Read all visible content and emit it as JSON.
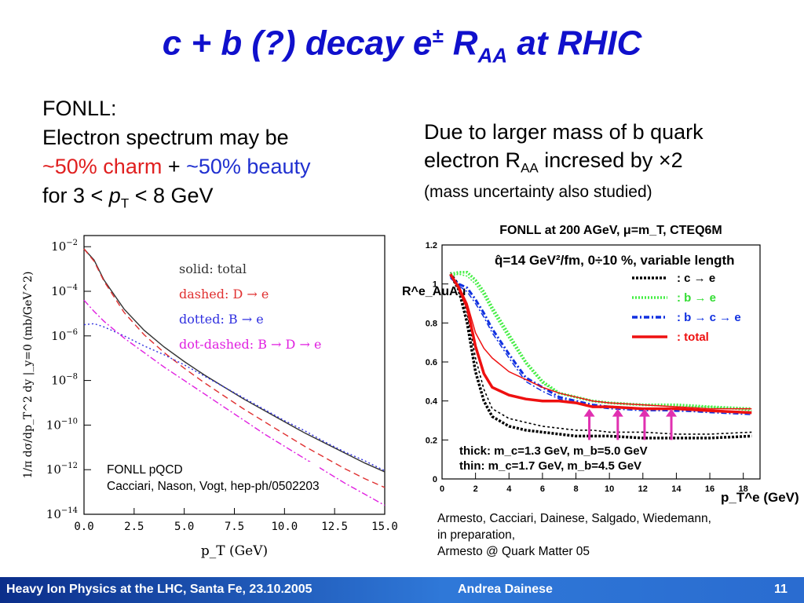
{
  "slide": {
    "title_main": "c + b (?) decay e",
    "title_sup": "±",
    "title_R": " R",
    "title_sub": "AA",
    "title_end": " at RHIC",
    "left_line1": "FONLL:",
    "left_line2": "Electron spectrum may be",
    "left_charm": "~50% charm",
    "left_plus": " + ",
    "left_beauty": "~50% beauty",
    "left_line4a": "for 3 < ",
    "left_line4p": "p",
    "left_line4sub": "T",
    "left_line4b": " < 8 GeV",
    "right_line1": "Due to larger mass of b quark",
    "right_line2a": "electron R",
    "right_line2sub": "AA",
    "right_line2b": " incresed by ×2",
    "right_line3": "(mass uncertainty also studied)",
    "credit_left_1": "FONLL pQCD",
    "credit_left_2": "Cacciari, Nason, Vogt, hep-ph/0502203",
    "credit_right_1": "Armesto, Cacciari, Dainese, Salgado, Wiedemann,",
    "credit_right_2": "in preparation,",
    "credit_right_3": "Armesto @ Quark Matter 05",
    "footer_left": "Heavy Ion Physics at the LHC, Santa Fe, 23.10.2005",
    "footer_center": "Andrea Dainese",
    "footer_page": "11"
  },
  "chart_data": [
    {
      "type": "line",
      "xlabel": "p_T (GeV)",
      "ylabel": "1/π dσ/dp_T^2 dy |_y=0 (mb/GeV^2)",
      "xlim": [
        0,
        15
      ],
      "ylim_log10": [
        -14,
        -1.5
      ],
      "log_y": true,
      "x_ticks": [
        "0.0",
        "2.5",
        "5.0",
        "7.5",
        "10.0",
        "12.5",
        "15.0"
      ],
      "y_ticks": [
        "10^-2",
        "10^-4",
        "10^-6",
        "10^-8",
        "10^-10",
        "10^-12",
        "10^-14"
      ],
      "legend": [
        "solid: total",
        "dashed: D → e",
        "dotted: B → e",
        "dot-dashed: B → D → e"
      ],
      "legend_colors": [
        "#333333",
        "#e03030",
        "#3030e0",
        "#e020e0"
      ],
      "x": [
        0,
        0.5,
        1,
        2,
        3,
        4,
        5,
        6,
        7,
        8,
        9,
        10,
        11,
        12,
        13,
        14,
        15
      ],
      "series": [
        {
          "name": "solid: total",
          "log10_values": [
            -2.1,
            -2.6,
            -3.5,
            -4.8,
            -5.75,
            -6.5,
            -7.15,
            -7.75,
            -8.3,
            -8.85,
            -9.35,
            -9.85,
            -10.35,
            -10.8,
            -11.25,
            -11.7,
            -12.1
          ]
        },
        {
          "name": "dashed: D → e",
          "log10_values": [
            -2.1,
            -2.65,
            -3.55,
            -4.95,
            -5.95,
            -6.75,
            -7.45,
            -8.1,
            -8.7,
            -9.3,
            -9.85,
            -10.4,
            -10.95,
            -11.45,
            -11.95,
            -12.4,
            -12.8
          ]
        },
        {
          "name": "dotted: B → e",
          "log10_values": [
            -5.5,
            -5.45,
            -5.6,
            -6.0,
            -6.45,
            -6.85,
            -7.3,
            -7.8,
            -8.3,
            -8.8,
            -9.3,
            -9.8,
            -10.25,
            -10.75,
            -11.2,
            -11.6,
            -12.05
          ]
        },
        {
          "name": "dot-dashed: B → D → e",
          "log10_values": [
            -4.4,
            -4.9,
            -5.35,
            -6.1,
            -6.75,
            -7.4,
            -8.0,
            -8.6,
            -9.2,
            -9.8,
            -10.4,
            -10.95,
            -11.5,
            -12.05,
            -12.6,
            -13.1,
            -13.6
          ]
        }
      ]
    },
    {
      "type": "line",
      "title": "FONLL at 200 AGeV, μ=m_T, CTEQ6M",
      "annotation": "q̂=14 GeV²/fm, 0÷10 %, variable length",
      "xlabel": "p_T^e (GeV)",
      "ylabel": "R^e_AuAu",
      "xlim": [
        0,
        19
      ],
      "ylim": [
        0,
        1.2
      ],
      "x_ticks": [
        "0",
        "2",
        "4",
        "6",
        "8",
        "10",
        "12",
        "14",
        "16",
        "18"
      ],
      "y_ticks": [
        "0",
        "0.2",
        "0.4",
        "0.6",
        "0.8",
        "1",
        "1.2"
      ],
      "legend": [
        ": c → e",
        ": b → e",
        ": b → c → e",
        ": total"
      ],
      "legend_colors": [
        "#000000",
        "#33dd33",
        "#1030e0",
        "#ee1010"
      ],
      "note_thick": "thick: m_c=1.3 GeV, m_b=5.0 GeV",
      "note_thin": "thin: m_c=1.7 GeV, m_b=4.5 GeV",
      "arrows_x": [
        8.8,
        10.5,
        12.1,
        13.7
      ],
      "arrows_y": [
        0.2,
        0.36
      ],
      "x": [
        0.5,
        1,
        1.5,
        2,
        2.5,
        3,
        4,
        5,
        6,
        7,
        8,
        9,
        10,
        12,
        14,
        16,
        18.5
      ],
      "series": [
        {
          "name": "c → e (thick)",
          "values": [
            1.05,
            0.97,
            0.8,
            0.55,
            0.4,
            0.32,
            0.27,
            0.25,
            0.24,
            0.23,
            0.22,
            0.22,
            0.22,
            0.21,
            0.21,
            0.21,
            0.22
          ]
        },
        {
          "name": "c → e (thin)",
          "values": [
            1.06,
            1.0,
            0.85,
            0.62,
            0.46,
            0.36,
            0.31,
            0.29,
            0.27,
            0.26,
            0.25,
            0.25,
            0.24,
            0.24,
            0.23,
            0.23,
            0.24
          ]
        },
        {
          "name": "b → e (thick)",
          "values": [
            1.05,
            1.06,
            1.06,
            1.02,
            0.96,
            0.88,
            0.74,
            0.6,
            0.5,
            0.44,
            0.42,
            0.4,
            0.39,
            0.38,
            0.38,
            0.37,
            0.36
          ]
        },
        {
          "name": "b → e (thin)",
          "values": [
            1.04,
            1.05,
            1.04,
            1.0,
            0.94,
            0.86,
            0.72,
            0.59,
            0.49,
            0.44,
            0.42,
            0.4,
            0.39,
            0.38,
            0.37,
            0.37,
            0.35
          ]
        },
        {
          "name": "b → c → e (thick)",
          "values": [
            1.04,
            1.0,
            0.98,
            0.92,
            0.85,
            0.77,
            0.64,
            0.52,
            0.47,
            0.42,
            0.4,
            0.38,
            0.37,
            0.36,
            0.35,
            0.35,
            0.34
          ]
        },
        {
          "name": "b → c → e (thin)",
          "values": [
            1.03,
            0.99,
            0.96,
            0.9,
            0.83,
            0.75,
            0.62,
            0.5,
            0.45,
            0.41,
            0.39,
            0.37,
            0.36,
            0.35,
            0.35,
            0.34,
            0.33
          ]
        },
        {
          "name": "total (thick)",
          "values": [
            1.05,
            0.98,
            0.88,
            0.68,
            0.54,
            0.47,
            0.43,
            0.41,
            0.4,
            0.4,
            0.39,
            0.37,
            0.37,
            0.36,
            0.36,
            0.35,
            0.34
          ]
        },
        {
          "name": "total (thin)",
          "values": [
            1.05,
            0.99,
            0.9,
            0.75,
            0.67,
            0.62,
            0.55,
            0.51,
            0.47,
            0.44,
            0.42,
            0.4,
            0.39,
            0.38,
            0.37,
            0.36,
            0.36
          ]
        }
      ]
    }
  ]
}
